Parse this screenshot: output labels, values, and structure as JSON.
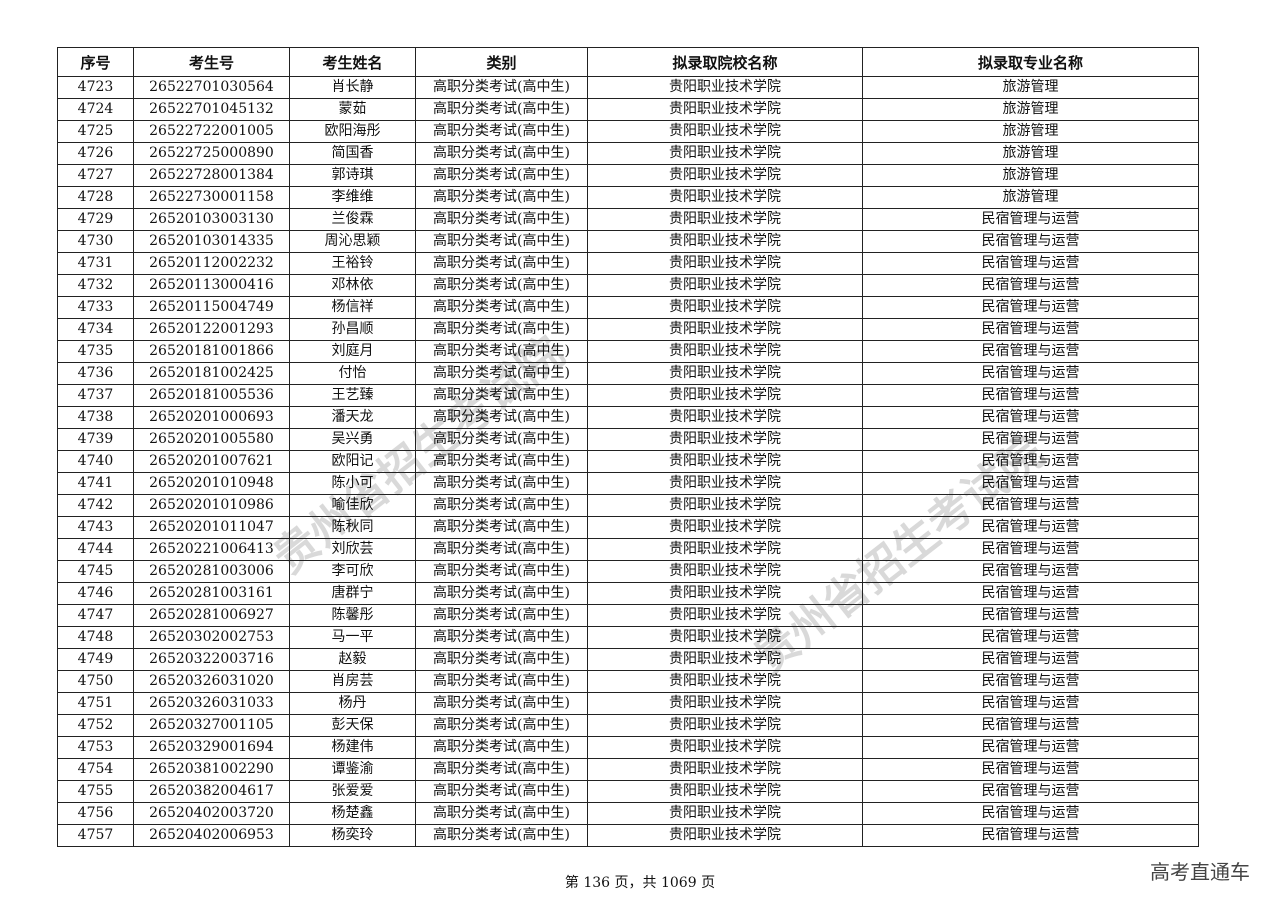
{
  "headers": [
    "序号",
    "考生号",
    "考生姓名",
    "类别",
    "拟录取院校名称",
    "拟录取专业名称"
  ],
  "category": "高职分类考试(高中生)",
  "school": "贵阳职业技术学院",
  "rows": [
    [
      "4723",
      "26522701030564",
      "肖长静",
      "旅游管理"
    ],
    [
      "4724",
      "26522701045132",
      "蒙茹",
      "旅游管理"
    ],
    [
      "4725",
      "26522722001005",
      "欧阳海彤",
      "旅游管理"
    ],
    [
      "4726",
      "26522725000890",
      "简国香",
      "旅游管理"
    ],
    [
      "4727",
      "26522728001384",
      "郭诗琪",
      "旅游管理"
    ],
    [
      "4728",
      "26522730001158",
      "李维维",
      "旅游管理"
    ],
    [
      "4729",
      "26520103003130",
      "兰俊霖",
      "民宿管理与运营"
    ],
    [
      "4730",
      "26520103014335",
      "周沁思颖",
      "民宿管理与运营"
    ],
    [
      "4731",
      "26520112002232",
      "王裕铃",
      "民宿管理与运营"
    ],
    [
      "4732",
      "26520113000416",
      "邓林依",
      "民宿管理与运营"
    ],
    [
      "4733",
      "26520115004749",
      "杨信祥",
      "民宿管理与运营"
    ],
    [
      "4734",
      "26520122001293",
      "孙昌顺",
      "民宿管理与运营"
    ],
    [
      "4735",
      "26520181001866",
      "刘庭月",
      "民宿管理与运营"
    ],
    [
      "4736",
      "26520181002425",
      "付怡",
      "民宿管理与运营"
    ],
    [
      "4737",
      "26520181005536",
      "王艺臻",
      "民宿管理与运营"
    ],
    [
      "4738",
      "26520201000693",
      "潘天龙",
      "民宿管理与运营"
    ],
    [
      "4739",
      "26520201005580",
      "吴兴勇",
      "民宿管理与运营"
    ],
    [
      "4740",
      "26520201007621",
      "欧阳记",
      "民宿管理与运营"
    ],
    [
      "4741",
      "26520201010948",
      "陈小可",
      "民宿管理与运营"
    ],
    [
      "4742",
      "26520201010986",
      "喻佳欣",
      "民宿管理与运营"
    ],
    [
      "4743",
      "26520201011047",
      "陈秋同",
      "民宿管理与运营"
    ],
    [
      "4744",
      "26520221006413",
      "刘欣芸",
      "民宿管理与运营"
    ],
    [
      "4745",
      "26520281003006",
      "李可欣",
      "民宿管理与运营"
    ],
    [
      "4746",
      "26520281003161",
      "唐群宁",
      "民宿管理与运营"
    ],
    [
      "4747",
      "26520281006927",
      "陈馨彤",
      "民宿管理与运营"
    ],
    [
      "4748",
      "26520302002753",
      "马一平",
      "民宿管理与运营"
    ],
    [
      "4749",
      "26520322003716",
      "赵毅",
      "民宿管理与运营"
    ],
    [
      "4750",
      "26520326031020",
      "肖房芸",
      "民宿管理与运营"
    ],
    [
      "4751",
      "26520326031033",
      "杨丹",
      "民宿管理与运营"
    ],
    [
      "4752",
      "26520327001105",
      "彭天保",
      "民宿管理与运营"
    ],
    [
      "4753",
      "26520329001694",
      "杨建伟",
      "民宿管理与运营"
    ],
    [
      "4754",
      "26520381002290",
      "谭鉴渝",
      "民宿管理与运营"
    ],
    [
      "4755",
      "26520382004617",
      "张爱爱",
      "民宿管理与运营"
    ],
    [
      "4756",
      "26520402003720",
      "杨楚鑫",
      "民宿管理与运营"
    ],
    [
      "4757",
      "26520402006953",
      "杨奕玲",
      "民宿管理与运营"
    ]
  ],
  "footer": "第 136 页，共 1069 页",
  "watermark_corner": "高考直通车",
  "stamp_text": "贵州省招生考试院"
}
